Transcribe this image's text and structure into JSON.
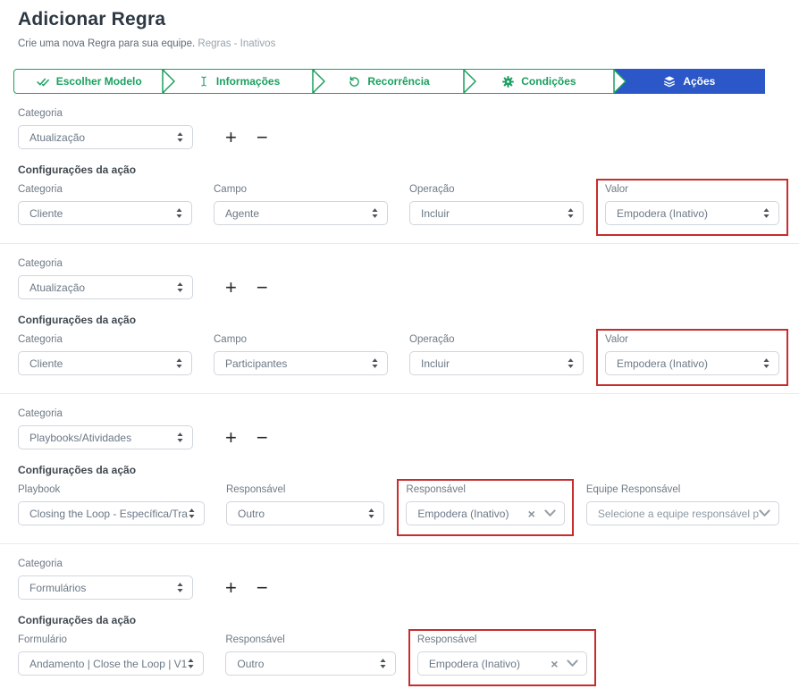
{
  "header": {
    "title": "Adicionar Regra",
    "subtitle": "Crie uma nova Regra para sua equipe.",
    "breadcrumb": "Regras - Inativos"
  },
  "colors": {
    "stepper_green": "#1aa05f",
    "active_step_blue": "#2b57c8",
    "highlight_red": "#c82d2d"
  },
  "stepper": [
    {
      "label": "Escolher Modelo",
      "icon": "double-check-icon",
      "active": false
    },
    {
      "label": "Informações",
      "icon": "text-cursor-icon",
      "active": false
    },
    {
      "label": "Recorrência",
      "icon": "undo-icon",
      "active": false
    },
    {
      "label": "Condições",
      "icon": "gear-icon",
      "active": false
    },
    {
      "label": "Ações",
      "icon": "layers-icon",
      "active": true
    }
  ],
  "actions": {
    "add": "+",
    "remove": "−"
  },
  "icons": {
    "select_arrows": "updown-arrows-icon",
    "combo_clear": "x-clear-icon",
    "combo_chevron": "chevron-down-icon",
    "step_separator": "chevron-right-separator-icon"
  },
  "sections": [
    {
      "category": {
        "label": "Categoria",
        "value": "Atualização"
      },
      "config_title": "Configurações da ação",
      "fields": [
        {
          "label": "Categoria",
          "value": "Cliente",
          "control": "select",
          "highlighted": false
        },
        {
          "label": "Campo",
          "value": "Agente",
          "control": "select",
          "highlighted": false
        },
        {
          "label": "Operação",
          "value": "Incluir",
          "control": "select",
          "highlighted": false
        },
        {
          "label": "Valor",
          "value": "Empodera (Inativo)",
          "control": "select",
          "highlighted": true
        }
      ]
    },
    {
      "category": {
        "label": "Categoria",
        "value": "Atualização"
      },
      "config_title": "Configurações da ação",
      "fields": [
        {
          "label": "Categoria",
          "value": "Cliente",
          "control": "select",
          "highlighted": false
        },
        {
          "label": "Campo",
          "value": "Participantes",
          "control": "select",
          "highlighted": false
        },
        {
          "label": "Operação",
          "value": "Incluir",
          "control": "select",
          "highlighted": false
        },
        {
          "label": "Valor",
          "value": "Empodera (Inativo)",
          "control": "select",
          "highlighted": true
        }
      ]
    },
    {
      "category": {
        "label": "Categoria",
        "value": "Playbooks/Atividades"
      },
      "config_title": "Configurações da ação",
      "fields": [
        {
          "label": "Playbook",
          "value": "Closing the Loop - Específica/Tra",
          "control": "select",
          "highlighted": false
        },
        {
          "label": "Responsável",
          "value": "Outro",
          "control": "select",
          "highlighted": false
        },
        {
          "label": "Responsável",
          "value": "Empodera (Inativo)",
          "control": "combo",
          "highlighted": true
        },
        {
          "label": "Equipe Responsável",
          "placeholder": "Selecione a equipe responsável p",
          "control": "combo-placeholder",
          "highlighted": false
        }
      ]
    },
    {
      "category": {
        "label": "Categoria",
        "value": "Formulários"
      },
      "config_title": "Configurações da ação",
      "fields": [
        {
          "label": "Formulário",
          "value": "Andamento | Close the Loop | V1",
          "control": "select",
          "highlighted": false
        },
        {
          "label": "Responsável",
          "value": "Outro",
          "control": "select",
          "highlighted": false
        },
        {
          "label": "Responsável",
          "value": "Empodera (Inativo)",
          "control": "combo",
          "highlighted": true
        }
      ]
    }
  ]
}
